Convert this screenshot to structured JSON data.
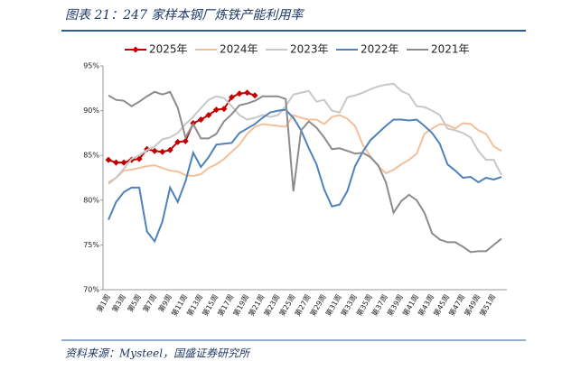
{
  "chart_data": {
    "type": "line",
    "title": "图表 21：247 家样本钢厂炼铁产能利用率",
    "source": "资料来源：Mysteel，国盛证券研究所",
    "categories": [
      "第1周",
      null,
      "第3周",
      null,
      "第5周",
      null,
      "第7周",
      null,
      "第9周",
      null,
      "第11周",
      null,
      "第13周",
      null,
      "第15周",
      null,
      "第17周",
      null,
      "第19周",
      null,
      "第21周",
      null,
      "第23周",
      null,
      "第25周",
      null,
      "第27周",
      null,
      "第29周",
      null,
      "第31周",
      null,
      "第33周",
      null,
      "第35周",
      null,
      "第37周",
      null,
      "第39周",
      null,
      "第41周",
      null,
      "第43周",
      null,
      "第45周",
      null,
      "第47周",
      null,
      "第49周",
      null,
      "第51周",
      null
    ],
    "ylim": [
      70,
      95
    ],
    "yticks": [
      {
        "value": 70,
        "label": "70%"
      },
      {
        "value": 75,
        "label": "75%"
      },
      {
        "value": 80,
        "label": "80%"
      },
      {
        "value": 85,
        "label": "85%"
      },
      {
        "value": 90,
        "label": "90%"
      },
      {
        "value": 95,
        "label": "95%"
      }
    ],
    "legend": "top",
    "series": [
      {
        "name": "2025年",
        "color": "#c00000",
        "marker": "diamond",
        "values": [
          84.5,
          84.2,
          84.2,
          84.5,
          84.6,
          85.7,
          85.5,
          85.4,
          85.6,
          86.5,
          86.6,
          88.6,
          89.0,
          89.5,
          90.1,
          90.2,
          91.5,
          91.9,
          92.0,
          91.7,
          null,
          null,
          null,
          null,
          null,
          null,
          null,
          null,
          null,
          null,
          null,
          null,
          null,
          null,
          null,
          null,
          null,
          null,
          null,
          null,
          null,
          null,
          null,
          null,
          null,
          null,
          null,
          null,
          null,
          null,
          null,
          null
        ]
      },
      {
        "name": "2024年",
        "color": "#f4c09a",
        "values": [
          81.8,
          82.5,
          83.3,
          83.4,
          83.6,
          83.8,
          83.9,
          83.6,
          83.3,
          83.2,
          82.8,
          82.7,
          82.9,
          83.6,
          84.0,
          84.6,
          85.4,
          86.2,
          87.4,
          88.2,
          88.5,
          88.4,
          88.3,
          88.2,
          89.5,
          89.2,
          89.0,
          89.0,
          88.5,
          89.3,
          89.5,
          89.1,
          88.3,
          86.2,
          84.9,
          83.8,
          83.0,
          83.4,
          84.0,
          84.5,
          85.2,
          87.4,
          88.0,
          88.5,
          88.4,
          88.0,
          88.6,
          88.5,
          87.8,
          87.4,
          86.0,
          85.5
        ]
      },
      {
        "name": "2023年",
        "color": "#c8c8c8",
        "values": [
          82.0,
          82.5,
          83.5,
          84.6,
          85.0,
          85.6,
          86.0,
          86.8,
          87.0,
          87.5,
          88.5,
          89.3,
          90.3,
          91.2,
          91.6,
          91.4,
          90.5,
          89.5,
          89.0,
          89.2,
          89.5,
          89.3,
          89.5,
          90.5,
          91.8,
          92.0,
          92.2,
          91.0,
          91.2,
          90.0,
          89.8,
          91.5,
          91.7,
          92.0,
          92.4,
          92.7,
          92.9,
          93.0,
          92.2,
          91.8,
          90.5,
          90.4,
          90.0,
          89.5,
          88.0,
          87.8,
          87.5,
          87.0,
          85.5,
          84.5,
          84.5,
          82.8
        ]
      },
      {
        "name": "2022年",
        "color": "#4f81bd",
        "values": [
          77.8,
          79.8,
          80.9,
          81.4,
          81.4,
          76.5,
          75.4,
          77.6,
          81.4,
          79.8,
          82.1,
          85.3,
          83.7,
          84.8,
          86.2,
          86.3,
          86.4,
          87.5,
          88.0,
          88.5,
          89.2,
          89.8,
          90.0,
          90.1,
          89.2,
          87.8,
          85.8,
          84.0,
          81.2,
          79.3,
          79.5,
          81.0,
          83.8,
          85.4,
          86.7,
          87.5,
          88.3,
          89.0,
          89.0,
          88.9,
          89.0,
          88.3,
          87.5,
          86.3,
          84.0,
          83.3,
          82.5,
          82.6,
          82.0,
          82.5,
          82.3,
          82.6
        ]
      },
      {
        "name": "2021年",
        "color": "#8c8c8c",
        "values": [
          91.7,
          91.2,
          91.1,
          90.5,
          91.0,
          91.6,
          92.1,
          91.8,
          92.1,
          90.3,
          87.0,
          88.5,
          86.9,
          86.9,
          87.4,
          88.8,
          89.6,
          90.6,
          90.8,
          91.1,
          91.6,
          91.6,
          91.6,
          91.3,
          81.0,
          87.8,
          88.8,
          88.1,
          87.0,
          85.7,
          85.8,
          85.5,
          85.2,
          85.3,
          84.8,
          83.9,
          82.0,
          78.6,
          79.9,
          80.6,
          80.0,
          78.6,
          76.3,
          75.6,
          75.3,
          75.3,
          74.8,
          74.2,
          74.3,
          74.3,
          75.0,
          75.7
        ]
      }
    ]
  }
}
